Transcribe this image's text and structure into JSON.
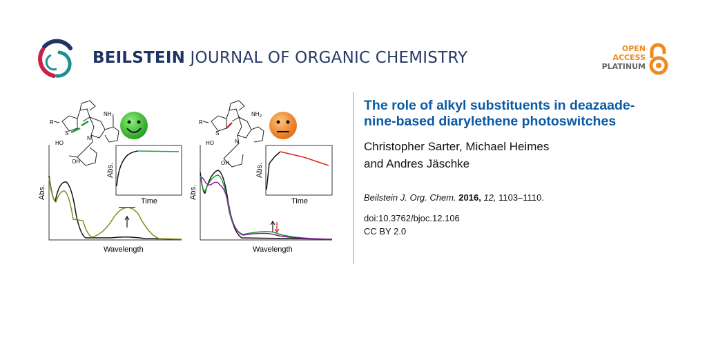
{
  "header": {
    "journal_bold": "BEILSTEIN",
    "journal_rest": "JOURNAL OF ORGANIC CHEMISTRY",
    "open_access": [
      "OPEN",
      "ACCESS",
      "PLATINUM"
    ],
    "colors": {
      "navy": "#1f3464",
      "crimson": "#c8224a",
      "teal": "#1e8f8f",
      "orange": "#f08a1c"
    }
  },
  "article": {
    "title": "The role of alkyl substituents in deazaade-nine-based diarylethene photoswitches",
    "title_lines": [
      "The role of alkyl substituents in deazaade-",
      "nine-based diarylethene photoswitches"
    ],
    "authors_lines": [
      "Christopher Sarter, Michael Heimes",
      "and Andres Jäschke"
    ],
    "citation": {
      "journal": "Beilstein J. Org. Chem.",
      "year": "2016,",
      "volume": "12,",
      "pages": "1103–1110."
    },
    "doi": "doi:10.3762/bjoc.12.106",
    "license": "CC BY 2.0",
    "title_color": "#0b5aa5"
  },
  "graphical_abstract": {
    "labels": {
      "abs": "Abs.",
      "time": "Time",
      "wavelength": "Wavelength",
      "nh2": "NH",
      "nh2_sub": "2",
      "ho": "HO",
      "oh": "OH",
      "r": "R",
      "s": "S",
      "n": "N"
    },
    "left_panel": {
      "face": "happy",
      "face_color": "#2fb52a"
    },
    "right_panel": {
      "face": "neutral",
      "face_color": "#f08a1c"
    }
  }
}
